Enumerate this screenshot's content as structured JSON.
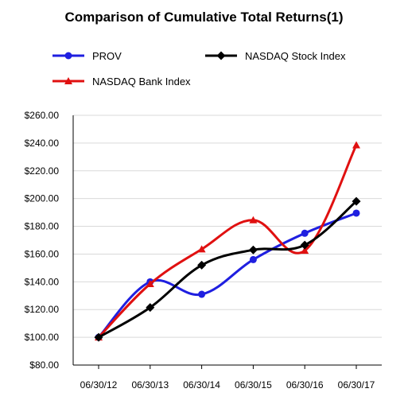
{
  "chart_data": {
    "type": "line",
    "title": "Comparison of Cumulative Total Returns(1)",
    "categories": [
      "06/30/12",
      "06/30/13",
      "06/30/14",
      "06/30/15",
      "06/30/16",
      "06/30/17"
    ],
    "y_ticks": [
      "$80.00",
      "$100.00",
      "$120.00",
      "$140.00",
      "$160.00",
      "$180.00",
      "$200.00",
      "$220.00",
      "$240.00",
      "$260.00"
    ],
    "ylim": [
      80,
      260
    ],
    "grid": true,
    "legend_position": "top",
    "series": [
      {
        "name": "PROV",
        "color": "#1f1fe0",
        "marker": "circle",
        "values": [
          100,
          140,
          131,
          156,
          175,
          189.5
        ]
      },
      {
        "name": "NASDAQ Stock Index",
        "color": "#000000",
        "marker": "diamond",
        "values": [
          100,
          121.5,
          152,
          163,
          166.5,
          198
        ]
      },
      {
        "name": "NASDAQ Bank Index",
        "color": "#e01010",
        "marker": "triangle",
        "values": [
          100,
          138.5,
          163.5,
          184.5,
          162.5,
          238.5
        ]
      }
    ]
  }
}
